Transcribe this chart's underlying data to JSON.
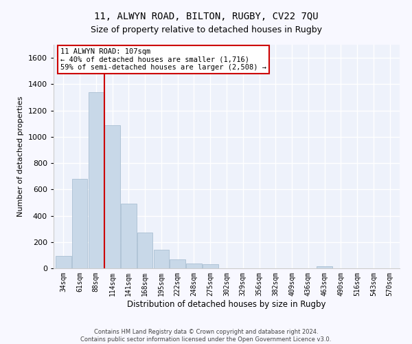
{
  "title_line1": "11, ALWYN ROAD, BILTON, RUGBY, CV22 7QU",
  "title_line2": "Size of property relative to detached houses in Rugby",
  "xlabel": "Distribution of detached houses by size in Rugby",
  "ylabel": "Number of detached properties",
  "bar_color": "#c8d8e8",
  "bar_edge_color": "#a0b8cc",
  "background_color": "#eef2fb",
  "grid_color": "#ffffff",
  "categories": [
    "34sqm",
    "61sqm",
    "88sqm",
    "114sqm",
    "141sqm",
    "168sqm",
    "195sqm",
    "222sqm",
    "248sqm",
    "275sqm",
    "302sqm",
    "329sqm",
    "356sqm",
    "382sqm",
    "409sqm",
    "436sqm",
    "463sqm",
    "490sqm",
    "516sqm",
    "543sqm",
    "570sqm"
  ],
  "values": [
    95,
    680,
    1340,
    1090,
    490,
    270,
    140,
    70,
    35,
    30,
    0,
    0,
    0,
    0,
    0,
    0,
    15,
    0,
    0,
    0,
    0
  ],
  "ylim": [
    0,
    1700
  ],
  "yticks": [
    0,
    200,
    400,
    600,
    800,
    1000,
    1200,
    1400,
    1600
  ],
  "property_line_x": 2.5,
  "annotation_text_line1": "11 ALWYN ROAD: 107sqm",
  "annotation_text_line2": "← 40% of detached houses are smaller (1,716)",
  "annotation_text_line3": "59% of semi-detached houses are larger (2,508) →",
  "annotation_box_color": "#ffffff",
  "annotation_box_edge": "#cc0000",
  "red_line_color": "#cc0000",
  "footer_line1": "Contains HM Land Registry data © Crown copyright and database right 2024.",
  "footer_line2": "Contains public sector information licensed under the Open Government Licence v3.0.",
  "fig_facecolor": "#f8f8ff"
}
